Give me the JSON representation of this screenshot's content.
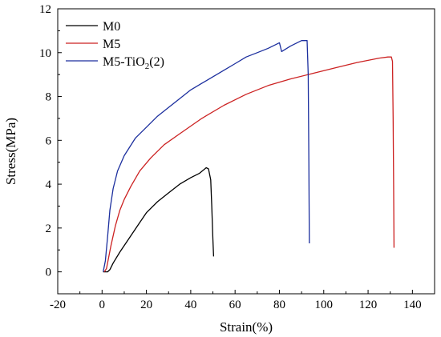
{
  "chart_data": {
    "type": "line",
    "xlabel": "Strain(%)",
    "ylabel": "Stress(MPa)",
    "xlim": [
      -20,
      150
    ],
    "ylim": [
      -1,
      12
    ],
    "xticks": [
      -20,
      0,
      20,
      40,
      60,
      80,
      100,
      120,
      140
    ],
    "yticks": [
      0,
      2,
      4,
      6,
      8,
      10,
      12
    ],
    "grid": false,
    "legend_position": "top-left",
    "series": [
      {
        "name": "M0",
        "color": "#000000",
        "points": [
          [
            0.5,
            0.0
          ],
          [
            2.5,
            0.0
          ],
          [
            3.5,
            0.1
          ],
          [
            5,
            0.4
          ],
          [
            8,
            0.9
          ],
          [
            12,
            1.5
          ],
          [
            16,
            2.1
          ],
          [
            20,
            2.7
          ],
          [
            25,
            3.2
          ],
          [
            30,
            3.6
          ],
          [
            35,
            4.0
          ],
          [
            40,
            4.3
          ],
          [
            44,
            4.5
          ],
          [
            47,
            4.75
          ],
          [
            48,
            4.7
          ],
          [
            49,
            4.2
          ],
          [
            49.5,
            3.0
          ],
          [
            50,
            1.5
          ],
          [
            50.3,
            0.7
          ]
        ]
      },
      {
        "name": "M5",
        "color": "#cc2222",
        "points": [
          [
            1,
            0.0
          ],
          [
            2,
            0.15
          ],
          [
            4,
            1.2
          ],
          [
            6,
            2.1
          ],
          [
            8,
            2.8
          ],
          [
            10,
            3.3
          ],
          [
            13,
            3.9
          ],
          [
            17,
            4.6
          ],
          [
            22,
            5.2
          ],
          [
            28,
            5.8
          ],
          [
            35,
            6.3
          ],
          [
            45,
            7.0
          ],
          [
            55,
            7.6
          ],
          [
            65,
            8.1
          ],
          [
            75,
            8.5
          ],
          [
            85,
            8.8
          ],
          [
            95,
            9.05
          ],
          [
            105,
            9.3
          ],
          [
            115,
            9.55
          ],
          [
            125,
            9.75
          ],
          [
            129,
            9.8
          ],
          [
            130.5,
            9.8
          ],
          [
            131,
            9.6
          ],
          [
            131.3,
            7.0
          ],
          [
            131.5,
            4.0
          ],
          [
            131.7,
            1.1
          ]
        ]
      },
      {
        "name": "M5-TiO₂(2)",
        "color": "#1c2f9e",
        "points": [
          [
            0.5,
            0.0
          ],
          [
            1.5,
            0.5
          ],
          [
            2.5,
            1.6
          ],
          [
            3.5,
            2.8
          ],
          [
            5,
            3.8
          ],
          [
            7,
            4.6
          ],
          [
            10,
            5.3
          ],
          [
            15,
            6.1
          ],
          [
            20,
            6.6
          ],
          [
            25,
            7.1
          ],
          [
            30,
            7.5
          ],
          [
            35,
            7.9
          ],
          [
            40,
            8.3
          ],
          [
            45,
            8.6
          ],
          [
            50,
            8.9
          ],
          [
            55,
            9.2
          ],
          [
            60,
            9.5
          ],
          [
            65,
            9.8
          ],
          [
            70,
            10.0
          ],
          [
            75,
            10.2
          ],
          [
            80,
            10.45
          ],
          [
            81,
            10.05
          ],
          [
            85,
            10.3
          ],
          [
            90,
            10.55
          ],
          [
            92.5,
            10.55
          ],
          [
            93,
            9.0
          ],
          [
            93.3,
            5.0
          ],
          [
            93.5,
            1.3
          ]
        ]
      }
    ]
  },
  "legend": {
    "items": [
      {
        "label": "M0",
        "color": "#000000"
      },
      {
        "label": "M5",
        "color": "#cc2222"
      },
      {
        "label": "M5-TiO",
        "sub": "2",
        "suffix": "(2)",
        "color": "#1c2f9e"
      }
    ]
  }
}
